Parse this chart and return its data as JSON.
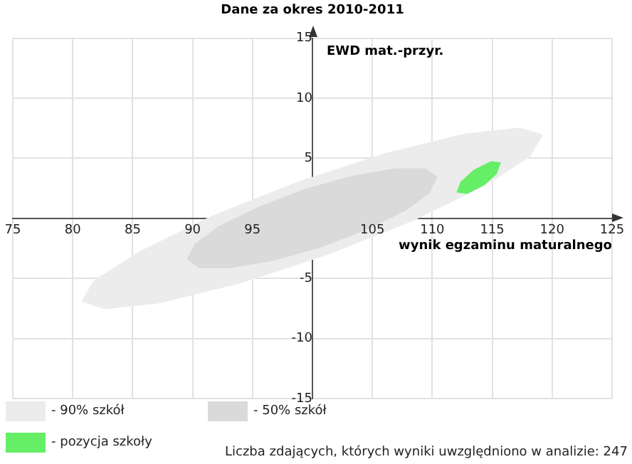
{
  "chart_data": {
    "type": "area",
    "title": "Dane za okres 2010-2011",
    "xlabel": "wynik egzaminu maturalnego",
    "ylabel": "EWD mat.-przyr.",
    "xlim": [
      75,
      125
    ],
    "ylim": [
      -15,
      15
    ],
    "xticks": [
      75,
      80,
      85,
      90,
      95,
      {
        "value": 100,
        "label": null
      },
      105,
      110,
      115,
      120,
      125
    ],
    "yticks": [
      -15,
      -10,
      -5,
      {
        "value": 0,
        "label": null
      },
      5,
      10,
      15
    ],
    "grid": true,
    "legend": "bottom",
    "marker": "none",
    "series": [
      {
        "name": "- 90% szkół",
        "color": "#ececec",
        "x": [
          119.2,
          117.3,
          112.7,
          106.2,
          98.8,
          91.5,
          85.6,
          81.8,
          80.8,
          82.7,
          87.3,
          93.8,
          101.2,
          108.5,
          114.4,
          118.2
        ],
        "values": [
          6.9,
          7.5,
          7.0,
          5.4,
          3.0,
          0.1,
          -2.8,
          -5.2,
          -6.9,
          -7.5,
          -7.0,
          -5.4,
          -3.0,
          -0.1,
          2.8,
          5.2
        ]
      },
      {
        "name": "- 50% szkół",
        "color": "#dadada",
        "x": [
          110.4,
          109.4,
          106.9,
          103.4,
          99.4,
          95.5,
          92.2,
          90.2,
          89.6,
          90.6,
          93.1,
          96.6,
          100.6,
          104.5,
          107.8,
          109.8
        ],
        "values": [
          3.4,
          4.1,
          4.1,
          3.5,
          2.4,
          0.9,
          -0.7,
          -2.2,
          -3.4,
          -4.1,
          -4.1,
          -3.5,
          -2.4,
          -0.9,
          0.7,
          2.2
        ]
      },
      {
        "name": "- pozycja szkoły",
        "color": "#66ee66",
        "x": [
          115.7,
          114.9,
          113.5,
          112.4,
          112.1,
          112.9,
          114.3,
          115.4
        ],
        "values": [
          4.6,
          4.7,
          4.0,
          3.0,
          2.2,
          2.1,
          2.8,
          3.8
        ]
      }
    ],
    "annotations": [
      "Liczba zdających, których wyniki uwzględniono w analizie: 247"
    ]
  }
}
